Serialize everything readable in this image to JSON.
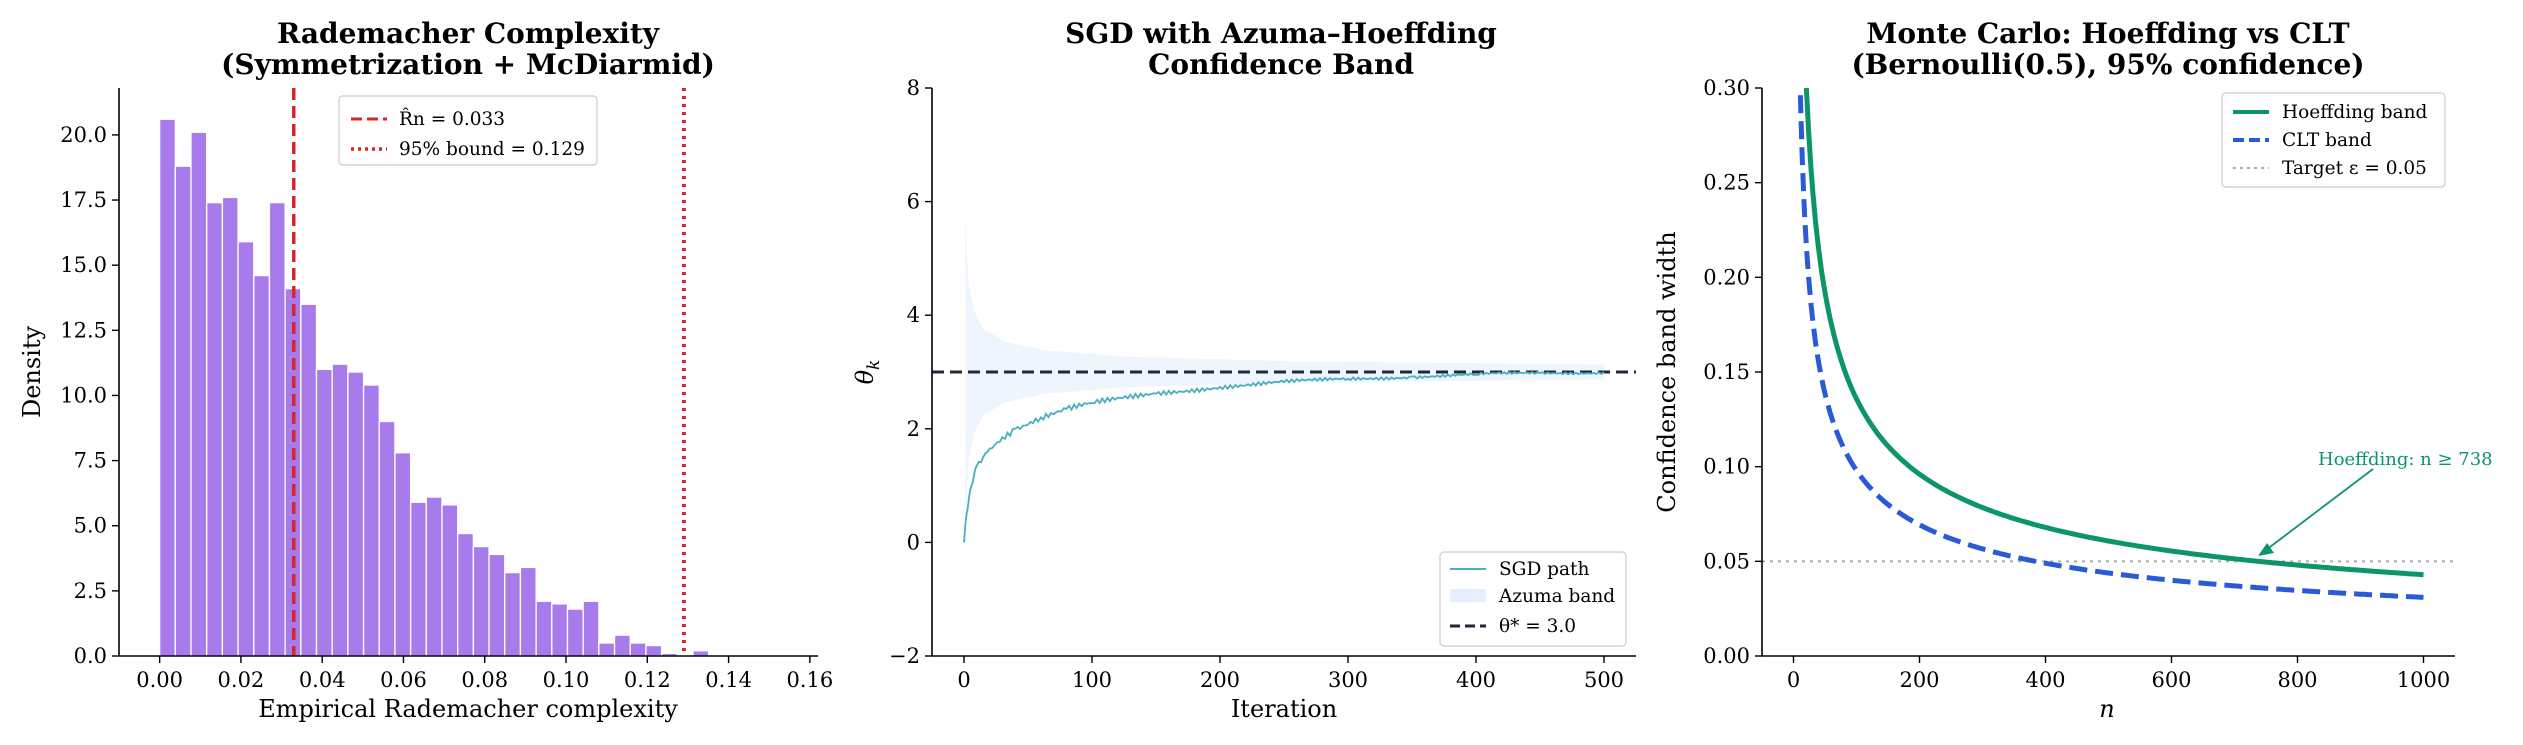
{
  "figure": {
    "panels": [
      {
        "title_line1": "Rademacher Complexity",
        "title_line2": "(Symmetrization + McDiarmid)",
        "xlabel": "Empirical Rademacher complexity",
        "ylabel": "Density"
      },
      {
        "title_line1": "SGD with Azuma–Hoeffding",
        "title_line2": "Confidence Band",
        "xlabel": "Iteration",
        "ylabel": "θk"
      },
      {
        "title_line1": "Monte Carlo: Hoeffding vs CLT",
        "title_line2": "(Bernoulli(0.5), 95% confidence)",
        "xlabel": "n",
        "ylabel": "Confidence band width"
      }
    ]
  },
  "chart_data": [
    {
      "type": "bar",
      "title": "Rademacher Complexity\n(Symmetrization + McDiarmid)",
      "xlabel": "Empirical Rademacher complexity",
      "ylabel": "Density",
      "xlim": [
        -0.01,
        0.162
      ],
      "ylim": [
        0,
        21.8
      ],
      "x_ticks": [
        "0.00",
        "0.02",
        "0.04",
        "0.06",
        "0.08",
        "0.10",
        "0.12",
        "0.14",
        "0.16"
      ],
      "y_ticks": [
        "0.0",
        "2.5",
        "5.0",
        "7.5",
        "10.0",
        "12.5",
        "15.0",
        "17.5",
        "20.0"
      ],
      "bin_width": 0.00386,
      "bin_start": 0.0,
      "values": [
        20.6,
        18.8,
        20.1,
        17.4,
        17.6,
        15.9,
        14.6,
        17.4,
        14.1,
        13.5,
        11.0,
        11.2,
        10.9,
        10.4,
        9.0,
        7.8,
        5.9,
        6.1,
        5.8,
        4.7,
        4.2,
        3.9,
        3.2,
        3.4,
        2.1,
        2.0,
        1.8,
        2.1,
        0.5,
        0.8,
        0.5,
        0.4,
        0.1,
        0.05,
        0.2,
        0.05,
        0.02,
        0.02,
        0.04,
        0.03
      ],
      "bar_color": "#a77bec",
      "vlines": [
        {
          "x": 0.033,
          "label": "R̂n = 0.033",
          "style": "dashed",
          "color": "#d62728"
        },
        {
          "x": 0.129,
          "label": "95% bound = 0.129",
          "style": "dotted",
          "color": "#d62728"
        }
      ],
      "legend": "top-center"
    },
    {
      "type": "line",
      "title": "SGD with Azuma–Hoeffding\nConfidence Band",
      "xlabel": "Iteration",
      "ylabel": "θk",
      "xlim": [
        -25,
        525
      ],
      "ylim": [
        -2,
        8
      ],
      "x_ticks": [
        "0",
        "100",
        "200",
        "300",
        "400",
        "500"
      ],
      "y_ticks": [
        "−2",
        "0",
        "2",
        "4",
        "6",
        "8"
      ],
      "series": [
        {
          "name": "SGD path",
          "color": "#4aaec0",
          "x": [
            0,
            2,
            4,
            6,
            8,
            10,
            15,
            20,
            30,
            40,
            60,
            80,
            100,
            150,
            200,
            250,
            300,
            350,
            400,
            450,
            500
          ],
          "y": [
            0.0,
            0.5,
            0.8,
            1.0,
            1.2,
            1.35,
            1.5,
            1.65,
            1.85,
            2.0,
            2.2,
            2.35,
            2.45,
            2.62,
            2.74,
            2.82,
            2.88,
            2.92,
            2.95,
            2.98,
            3.0
          ]
        },
        {
          "name": "Azuma band",
          "color": "#dce8fb",
          "x": [
            1,
            2,
            4,
            8,
            16,
            32,
            64,
            128,
            256,
            500
          ],
          "half_width": [
            3.0,
            2.12,
            1.5,
            1.06,
            0.75,
            0.53,
            0.38,
            0.27,
            0.19,
            0.13
          ]
        },
        {
          "name": "θ* = 3.0",
          "color": "#1f2937",
          "style": "dashed",
          "y": 3.0
        }
      ],
      "legend": "bottom-right"
    },
    {
      "type": "line",
      "title": "Monte Carlo: Hoeffding vs CLT\n(Bernoulli(0.5), 95% confidence)",
      "xlabel": "n",
      "ylabel": "Confidence band width",
      "xlim": [
        -50,
        1050
      ],
      "ylim": [
        0,
        0.3
      ],
      "x_ticks": [
        "0",
        "200",
        "400",
        "600",
        "800",
        "1000"
      ],
      "y_ticks": [
        "0.00",
        "0.05",
        "0.10",
        "0.15",
        "0.20",
        "0.25",
        "0.30"
      ],
      "series": [
        {
          "name": "Hoeffding band",
          "color": "#0b9663",
          "style": "solid",
          "formula": "sqrt(ln(2/0.05)/(2n))"
        },
        {
          "name": "CLT band",
          "color": "#2a5bd7",
          "style": "dashed",
          "formula": "1.96*0.5/sqrt(n)"
        },
        {
          "name": "Target ε = 0.05",
          "color": "#aaaaaa",
          "style": "dotted",
          "y": 0.05
        }
      ],
      "annotation": {
        "text": "Hoeffding: n ≥ 738",
        "x": 738,
        "y": 0.05,
        "color": "#0b9663"
      },
      "legend": "top-right"
    }
  ]
}
